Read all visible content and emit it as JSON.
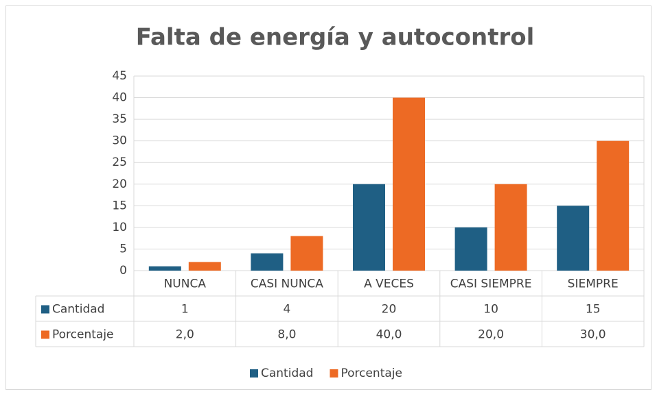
{
  "chart_data": {
    "type": "bar",
    "title": "Falta de energía y autocontrol",
    "categories": [
      "NUNCA",
      "CASI NUNCA",
      "A VECES",
      "CASI SIEMPRE",
      "SIEMPRE"
    ],
    "series": [
      {
        "name": "Cantidad",
        "color": "#1f5f84",
        "values": [
          1,
          4,
          20,
          10,
          15
        ]
      },
      {
        "name": "Porcentaje",
        "color": "#ed6a24",
        "values": [
          2,
          8,
          40,
          20,
          30
        ],
        "value_labels": [
          "2,0",
          "8,0",
          "40,0",
          "20,0",
          "30,0"
        ]
      }
    ],
    "ylim": [
      0,
      45
    ],
    "yticks": [
      0,
      5,
      10,
      15,
      20,
      25,
      30,
      35,
      40,
      45
    ],
    "grid": true,
    "legend": "bottom",
    "data_table": true
  }
}
